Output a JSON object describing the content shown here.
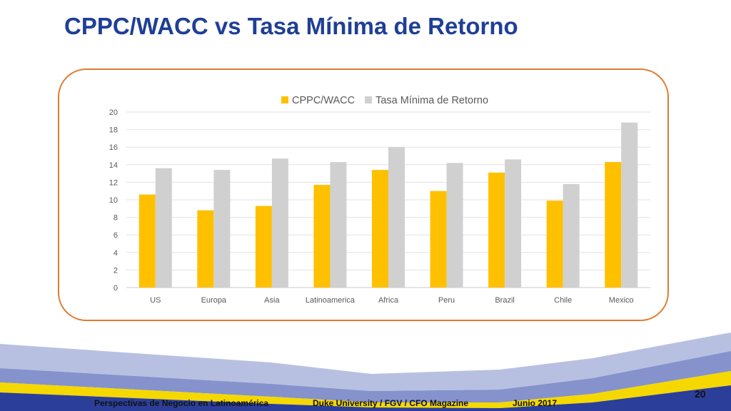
{
  "slide": {
    "title": "CPPC/WACC vs Tasa Mínima de Retorno",
    "page_number": "20"
  },
  "footer": {
    "left": "Perspectivas de Negocio en Latinoamérica",
    "center": "Duke University / FGV / CFO Magazine",
    "right": "Junio 2017"
  },
  "colors": {
    "title": "#1f3f96",
    "frame": "#e07b30",
    "series_wacc": "#ffc000",
    "series_tasa": "#d0d0d0"
  },
  "chart_data": {
    "type": "bar",
    "categories": [
      "US",
      "Europa",
      "Asia",
      "Latinoamerica",
      "Africa",
      "Peru",
      "Brazil",
      "Chile",
      "Mexico"
    ],
    "series": [
      {
        "name": "CPPC/WACC",
        "values": [
          10.6,
          8.8,
          9.3,
          11.7,
          13.4,
          11.0,
          13.1,
          9.9,
          14.3
        ],
        "color": "#ffc000"
      },
      {
        "name": "Tasa Mínima de Retorno",
        "values": [
          13.6,
          13.4,
          14.7,
          14.3,
          16.0,
          14.2,
          14.6,
          11.8,
          18.8
        ],
        "color": "#d0d0d0"
      }
    ],
    "y_ticks": [
      "0",
      "2",
      "4",
      "6",
      "8",
      "10",
      "12",
      "14",
      "16",
      "18",
      "20"
    ],
    "ylim": [
      0,
      20
    ],
    "grid": true,
    "legend_position": "top-center",
    "title": "",
    "xlabel": "",
    "ylabel": ""
  }
}
